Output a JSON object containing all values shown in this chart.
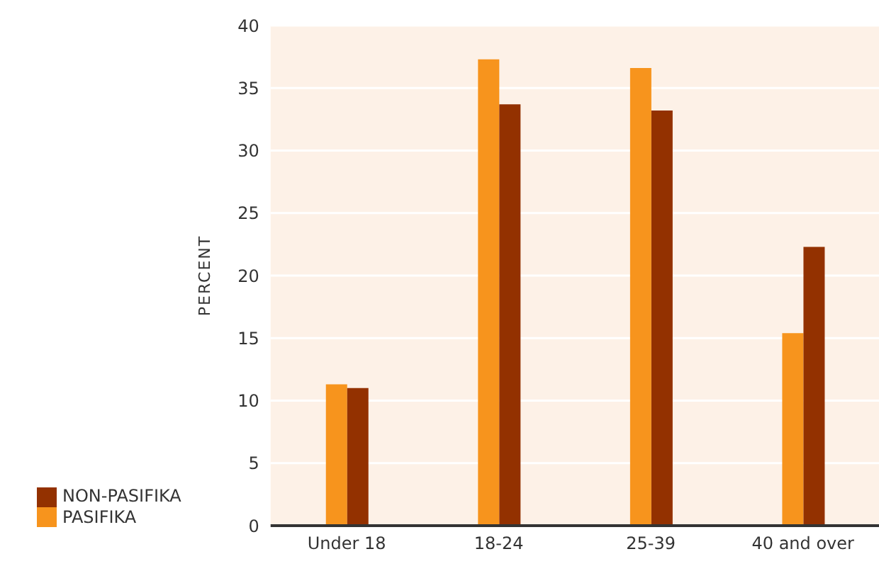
{
  "chart_data": {
    "type": "bar",
    "ylabel": "PERCENT",
    "categories": [
      "Under 18",
      "18-24",
      "25-39",
      "40 and over"
    ],
    "series": [
      {
        "name": "PASIFIKA",
        "color": "#f7941d",
        "values": [
          11.3,
          37.3,
          36.6,
          15.4
        ]
      },
      {
        "name": "NON-PASIFIKA",
        "color": "#933100",
        "values": [
          11.0,
          33.7,
          33.2,
          22.3
        ]
      }
    ],
    "ylim": [
      0,
      40
    ],
    "yticks": [
      0,
      5,
      10,
      15,
      20,
      25,
      30,
      35,
      40
    ],
    "grid": "y",
    "legend": "bottom left"
  }
}
